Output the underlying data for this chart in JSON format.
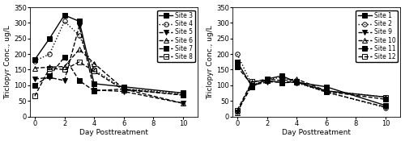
{
  "left_panel": {
    "xlabel": "Day Posttreatment",
    "ylabel": "Triclopyr Conc., ug/L",
    "xlim": [
      -0.3,
      11
    ],
    "ylim": [
      0,
      350
    ],
    "yticks": [
      0,
      50,
      100,
      150,
      200,
      250,
      300,
      350
    ],
    "xticks": [
      0,
      2,
      4,
      6,
      8,
      10
    ],
    "series": [
      {
        "label": "Site 3",
        "x": [
          0,
          1,
          2,
          3,
          4,
          6,
          10
        ],
        "y": [
          182,
          250,
          325,
          305,
          105,
          95,
          75
        ],
        "linestyle": "-",
        "marker": "s",
        "markersize": 4,
        "linewidth": 1.0,
        "fillstyle": "full"
      },
      {
        "label": "Site 4",
        "x": [
          0,
          1,
          2,
          3,
          4,
          6,
          10
        ],
        "y": [
          178,
          200,
          305,
          260,
          150,
          88,
          75
        ],
        "linestyle": ":",
        "marker": "o",
        "markersize": 4,
        "linewidth": 1.0,
        "fillstyle": "none"
      },
      {
        "label": "Site 5",
        "x": [
          0,
          1,
          2,
          3,
          4,
          6,
          10
        ],
        "y": [
          120,
          125,
          115,
          290,
          85,
          80,
          42
        ],
        "linestyle": "--",
        "marker": "v",
        "markersize": 4,
        "linewidth": 1.0,
        "fillstyle": "full"
      },
      {
        "label": "Site 6",
        "x": [
          0,
          1,
          2,
          3,
          4,
          6,
          10
        ],
        "y": [
          155,
          158,
          160,
          215,
          170,
          88,
          42
        ],
        "linestyle": "--",
        "marker": "^",
        "markersize": 4,
        "linewidth": 1.0,
        "fillstyle": "none"
      },
      {
        "label": "Site 7",
        "x": [
          0,
          1,
          2,
          3,
          4,
          6,
          10
        ],
        "y": [
          100,
          130,
          190,
          115,
          82,
          88,
          68
        ],
        "linestyle": "--",
        "marker": "s",
        "markersize": 4,
        "linewidth": 1.0,
        "fillstyle": "full"
      },
      {
        "label": "Site 8",
        "x": [
          0,
          1,
          2,
          3,
          4,
          6,
          10
        ],
        "y": [
          65,
          155,
          150,
          175,
          145,
          85,
          70
        ],
        "linestyle": "--",
        "marker": "s",
        "markersize": 4,
        "linewidth": 1.0,
        "fillstyle": "none"
      }
    ]
  },
  "right_panel": {
    "xlabel": "Day Posttreatment",
    "ylabel": "Triclopyr Conc., ug/L",
    "xlim": [
      -0.3,
      11
    ],
    "ylim": [
      0,
      350
    ],
    "yticks": [
      0,
      50,
      100,
      150,
      200,
      250,
      300,
      350
    ],
    "xticks": [
      0,
      2,
      4,
      6,
      8,
      10
    ],
    "series": [
      {
        "label": "Site 1",
        "x": [
          0,
          1,
          2,
          3,
          4,
          6,
          10
        ],
        "y": [
          175,
          95,
          120,
          130,
          110,
          95,
          35
        ],
        "linestyle": "-",
        "marker": "s",
        "markersize": 4,
        "linewidth": 1.0,
        "fillstyle": "full"
      },
      {
        "label": "Site 2",
        "x": [
          0,
          1,
          2,
          3,
          4,
          6,
          10
        ],
        "y": [
          200,
          100,
          118,
          125,
          108,
          78,
          28
        ],
        "linestyle": ":",
        "marker": "o",
        "markersize": 4,
        "linewidth": 1.0,
        "fillstyle": "none"
      },
      {
        "label": "Site 9",
        "x": [
          0,
          1,
          2,
          3,
          4,
          6,
          10
        ],
        "y": [
          15,
          100,
          110,
          112,
          110,
          78,
          30
        ],
        "linestyle": "--",
        "marker": "v",
        "markersize": 4,
        "linewidth": 1.0,
        "fillstyle": "full"
      },
      {
        "label": "Site 10",
        "x": [
          0,
          1,
          2,
          3,
          4,
          6,
          10
        ],
        "y": [
          12,
          110,
          120,
          115,
          120,
          82,
          62
        ],
        "linestyle": "--",
        "marker": "^",
        "markersize": 4,
        "linewidth": 1.0,
        "fillstyle": "none"
      },
      {
        "label": "Site 11",
        "x": [
          0,
          1,
          2,
          3,
          4,
          6,
          10
        ],
        "y": [
          160,
          100,
          115,
          108,
          112,
          80,
          55
        ],
        "linestyle": "--",
        "marker": "s",
        "markersize": 4,
        "linewidth": 1.0,
        "fillstyle": "full"
      },
      {
        "label": "Site 12",
        "x": [
          0,
          1,
          2,
          3,
          4,
          6,
          10
        ],
        "y": [
          20,
          112,
          115,
          108,
          110,
          82,
          62
        ],
        "linestyle": "--",
        "marker": "s",
        "markersize": 4,
        "linewidth": 1.0,
        "fillstyle": "none"
      }
    ]
  },
  "background_color": "white",
  "line_color": "black",
  "legend_fontsize": 5.5,
  "axis_fontsize": 6.5,
  "tick_fontsize": 6
}
